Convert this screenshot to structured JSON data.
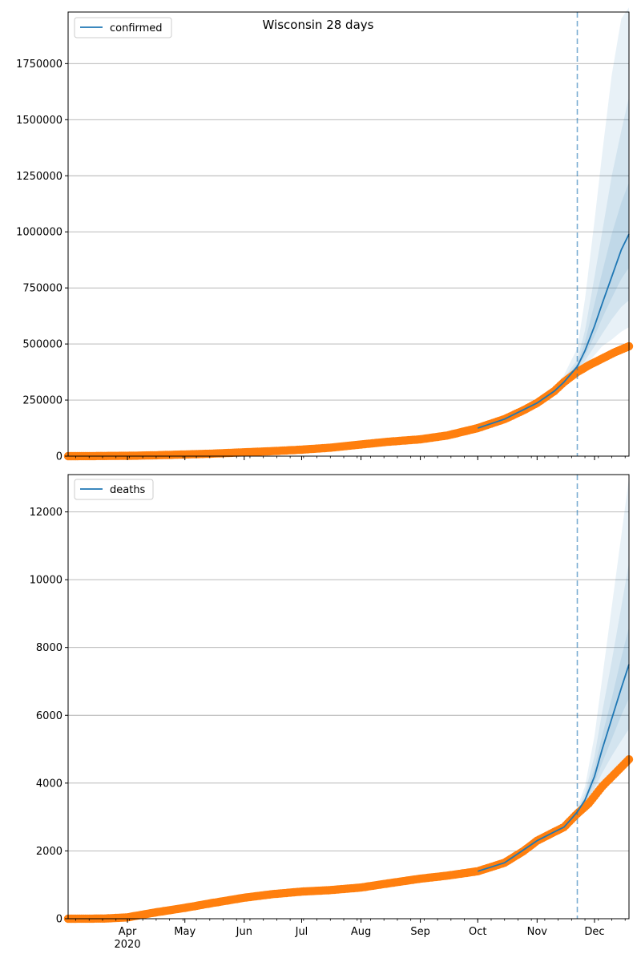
{
  "title": "Wisconsin 28 days",
  "colors": {
    "model": "#1f77b4",
    "observed": "#ff7f0e",
    "grid": "#b0b0b0",
    "vline": "#1f77b4"
  },
  "x_axis": {
    "start_date": "2020-03-01",
    "end_date": "2020-12-19",
    "month_ticks": [
      {
        "label": "Apr",
        "date": "2020-04-01"
      },
      {
        "label": "May",
        "date": "2020-05-01"
      },
      {
        "label": "Jun",
        "date": "2020-06-01"
      },
      {
        "label": "Jul",
        "date": "2020-07-01"
      },
      {
        "label": "Aug",
        "date": "2020-08-01"
      },
      {
        "label": "Sep",
        "date": "2020-09-01"
      },
      {
        "label": "Oct",
        "date": "2020-10-01"
      },
      {
        "label": "Nov",
        "date": "2020-11-01"
      },
      {
        "label": "Dec",
        "date": "2020-12-01"
      }
    ],
    "year_label": "2020"
  },
  "chart_data": [
    {
      "type": "line",
      "legend": "confirmed",
      "legend_position": "top-left",
      "ylim": [
        0,
        1980000
      ],
      "yticks": [
        0,
        250000,
        500000,
        750000,
        1000000,
        1250000,
        1500000,
        1750000
      ],
      "grid": "horizontal",
      "forecast_start": "2020-11-22",
      "observed": {
        "dates": [
          "2020-03-01",
          "2020-03-15",
          "2020-04-01",
          "2020-04-15",
          "2020-05-01",
          "2020-05-15",
          "2020-06-01",
          "2020-06-15",
          "2020-07-01",
          "2020-07-15",
          "2020-08-01",
          "2020-08-15",
          "2020-09-01",
          "2020-09-15",
          "2020-10-01",
          "2020-10-15",
          "2020-10-25",
          "2020-11-01",
          "2020-11-10",
          "2020-11-15",
          "2020-11-22",
          "2020-11-28",
          "2020-12-05",
          "2020-12-12",
          "2020-12-19"
        ],
        "values": [
          0,
          500,
          1500,
          3800,
          7500,
          11000,
          17000,
          22000,
          29000,
          37000,
          52000,
          64000,
          75000,
          92000,
          125000,
          165000,
          205000,
          237000,
          290000,
          330000,
          375000,
          405000,
          435000,
          465000,
          490000
        ]
      },
      "model": {
        "dates": [
          "2020-10-01",
          "2020-10-15",
          "2020-11-01",
          "2020-11-10",
          "2020-11-15",
          "2020-11-19",
          "2020-11-22",
          "2020-11-26",
          "2020-12-01",
          "2020-12-05",
          "2020-12-10",
          "2020-12-15",
          "2020-12-19"
        ],
        "values": [
          125000,
          165000,
          237000,
          290000,
          330000,
          370000,
          400000,
          470000,
          580000,
          680000,
          800000,
          920000,
          990000
        ],
        "bands": [
          {
            "lower": [
              122000,
              160000,
              228000,
              275000,
              310000,
              340000,
              360000,
              400000,
              450000,
              490000,
              520000,
              555000,
              575000
            ],
            "upper": [
              128000,
              172000,
              250000,
              310000,
              360000,
              430000,
              480000,
              700000,
              1050000,
              1350000,
              1700000,
              1950000,
              2000000
            ]
          },
          {
            "lower": [
              123000,
              162000,
              232000,
              282000,
              318000,
              352000,
              378000,
              425000,
              490000,
              545000,
              610000,
              665000,
              695000
            ],
            "upper": [
              127000,
              168000,
              244000,
              300000,
              345000,
              395000,
              430000,
              560000,
              800000,
              1000000,
              1250000,
              1450000,
              1600000
            ]
          },
          {
            "lower": [
              124000,
              163500,
              235000,
              286000,
              324000,
              361000,
              389000,
              448000,
              535000,
              615000,
              705000,
              790000,
              840000
            ],
            "upper": [
              126000,
              166500,
              240000,
              295000,
              337000,
              381000,
              413000,
              510000,
              680000,
              820000,
              990000,
              1130000,
              1220000
            ]
          }
        ]
      }
    },
    {
      "type": "line",
      "legend": "deaths",
      "legend_position": "top-left",
      "ylim": [
        0,
        13100
      ],
      "yticks": [
        0,
        2000,
        4000,
        6000,
        8000,
        10000,
        12000
      ],
      "grid": "horizontal",
      "forecast_start": "2020-11-22",
      "observed": {
        "dates": [
          "2020-03-01",
          "2020-03-20",
          "2020-04-01",
          "2020-04-15",
          "2020-05-01",
          "2020-05-15",
          "2020-06-01",
          "2020-06-15",
          "2020-07-01",
          "2020-07-15",
          "2020-08-01",
          "2020-08-15",
          "2020-09-01",
          "2020-09-15",
          "2020-10-01",
          "2020-10-15",
          "2020-10-25",
          "2020-11-01",
          "2020-11-10",
          "2020-11-15",
          "2020-11-22",
          "2020-11-28",
          "2020-12-05",
          "2020-12-12",
          "2020-12-19"
        ],
        "values": [
          0,
          5,
          40,
          180,
          320,
          460,
          620,
          720,
          800,
          840,
          920,
          1040,
          1180,
          1270,
          1400,
          1650,
          2000,
          2300,
          2560,
          2700,
          3100,
          3400,
          3900,
          4300,
          4700
        ]
      },
      "model": {
        "dates": [
          "2020-10-01",
          "2020-10-15",
          "2020-11-01",
          "2020-11-10",
          "2020-11-15",
          "2020-11-19",
          "2020-11-22",
          "2020-11-26",
          "2020-12-01",
          "2020-12-05",
          "2020-12-10",
          "2020-12-15",
          "2020-12-19"
        ],
        "values": [
          1400,
          1650,
          2300,
          2560,
          2700,
          2950,
          3150,
          3500,
          4200,
          5000,
          5900,
          6800,
          7500
        ],
        "bands": [
          {
            "lower": [
              1390,
              1630,
              2270,
              2520,
              2650,
              2880,
              3050,
              3300,
              3650,
              3950,
              4250,
              4500,
              4700
            ],
            "upper": [
              1410,
              1670,
              2330,
              2600,
              2760,
              3050,
              3300,
              3900,
              5400,
              7100,
              9200,
              11300,
              13000
            ]
          },
          {
            "lower": [
              1393,
              1638,
              2280,
              2535,
              2670,
              2905,
              3085,
              3380,
              3850,
              4300,
              4800,
              5250,
              5600
            ],
            "upper": [
              1407,
              1662,
              2320,
              2585,
              2735,
              3010,
              3230,
              3700,
              4800,
              6100,
              7600,
              9200,
              10500
            ]
          },
          {
            "lower": [
              1396,
              1644,
              2290,
              2548,
              2685,
              2925,
              3115,
              3440,
              4000,
              4600,
              5300,
              6000,
              6500
            ],
            "upper": [
              1404,
              1656,
              2310,
              2572,
              2718,
              2980,
              3185,
              3580,
              4450,
              5400,
              6500,
              7700,
              8600
            ]
          }
        ]
      }
    }
  ]
}
